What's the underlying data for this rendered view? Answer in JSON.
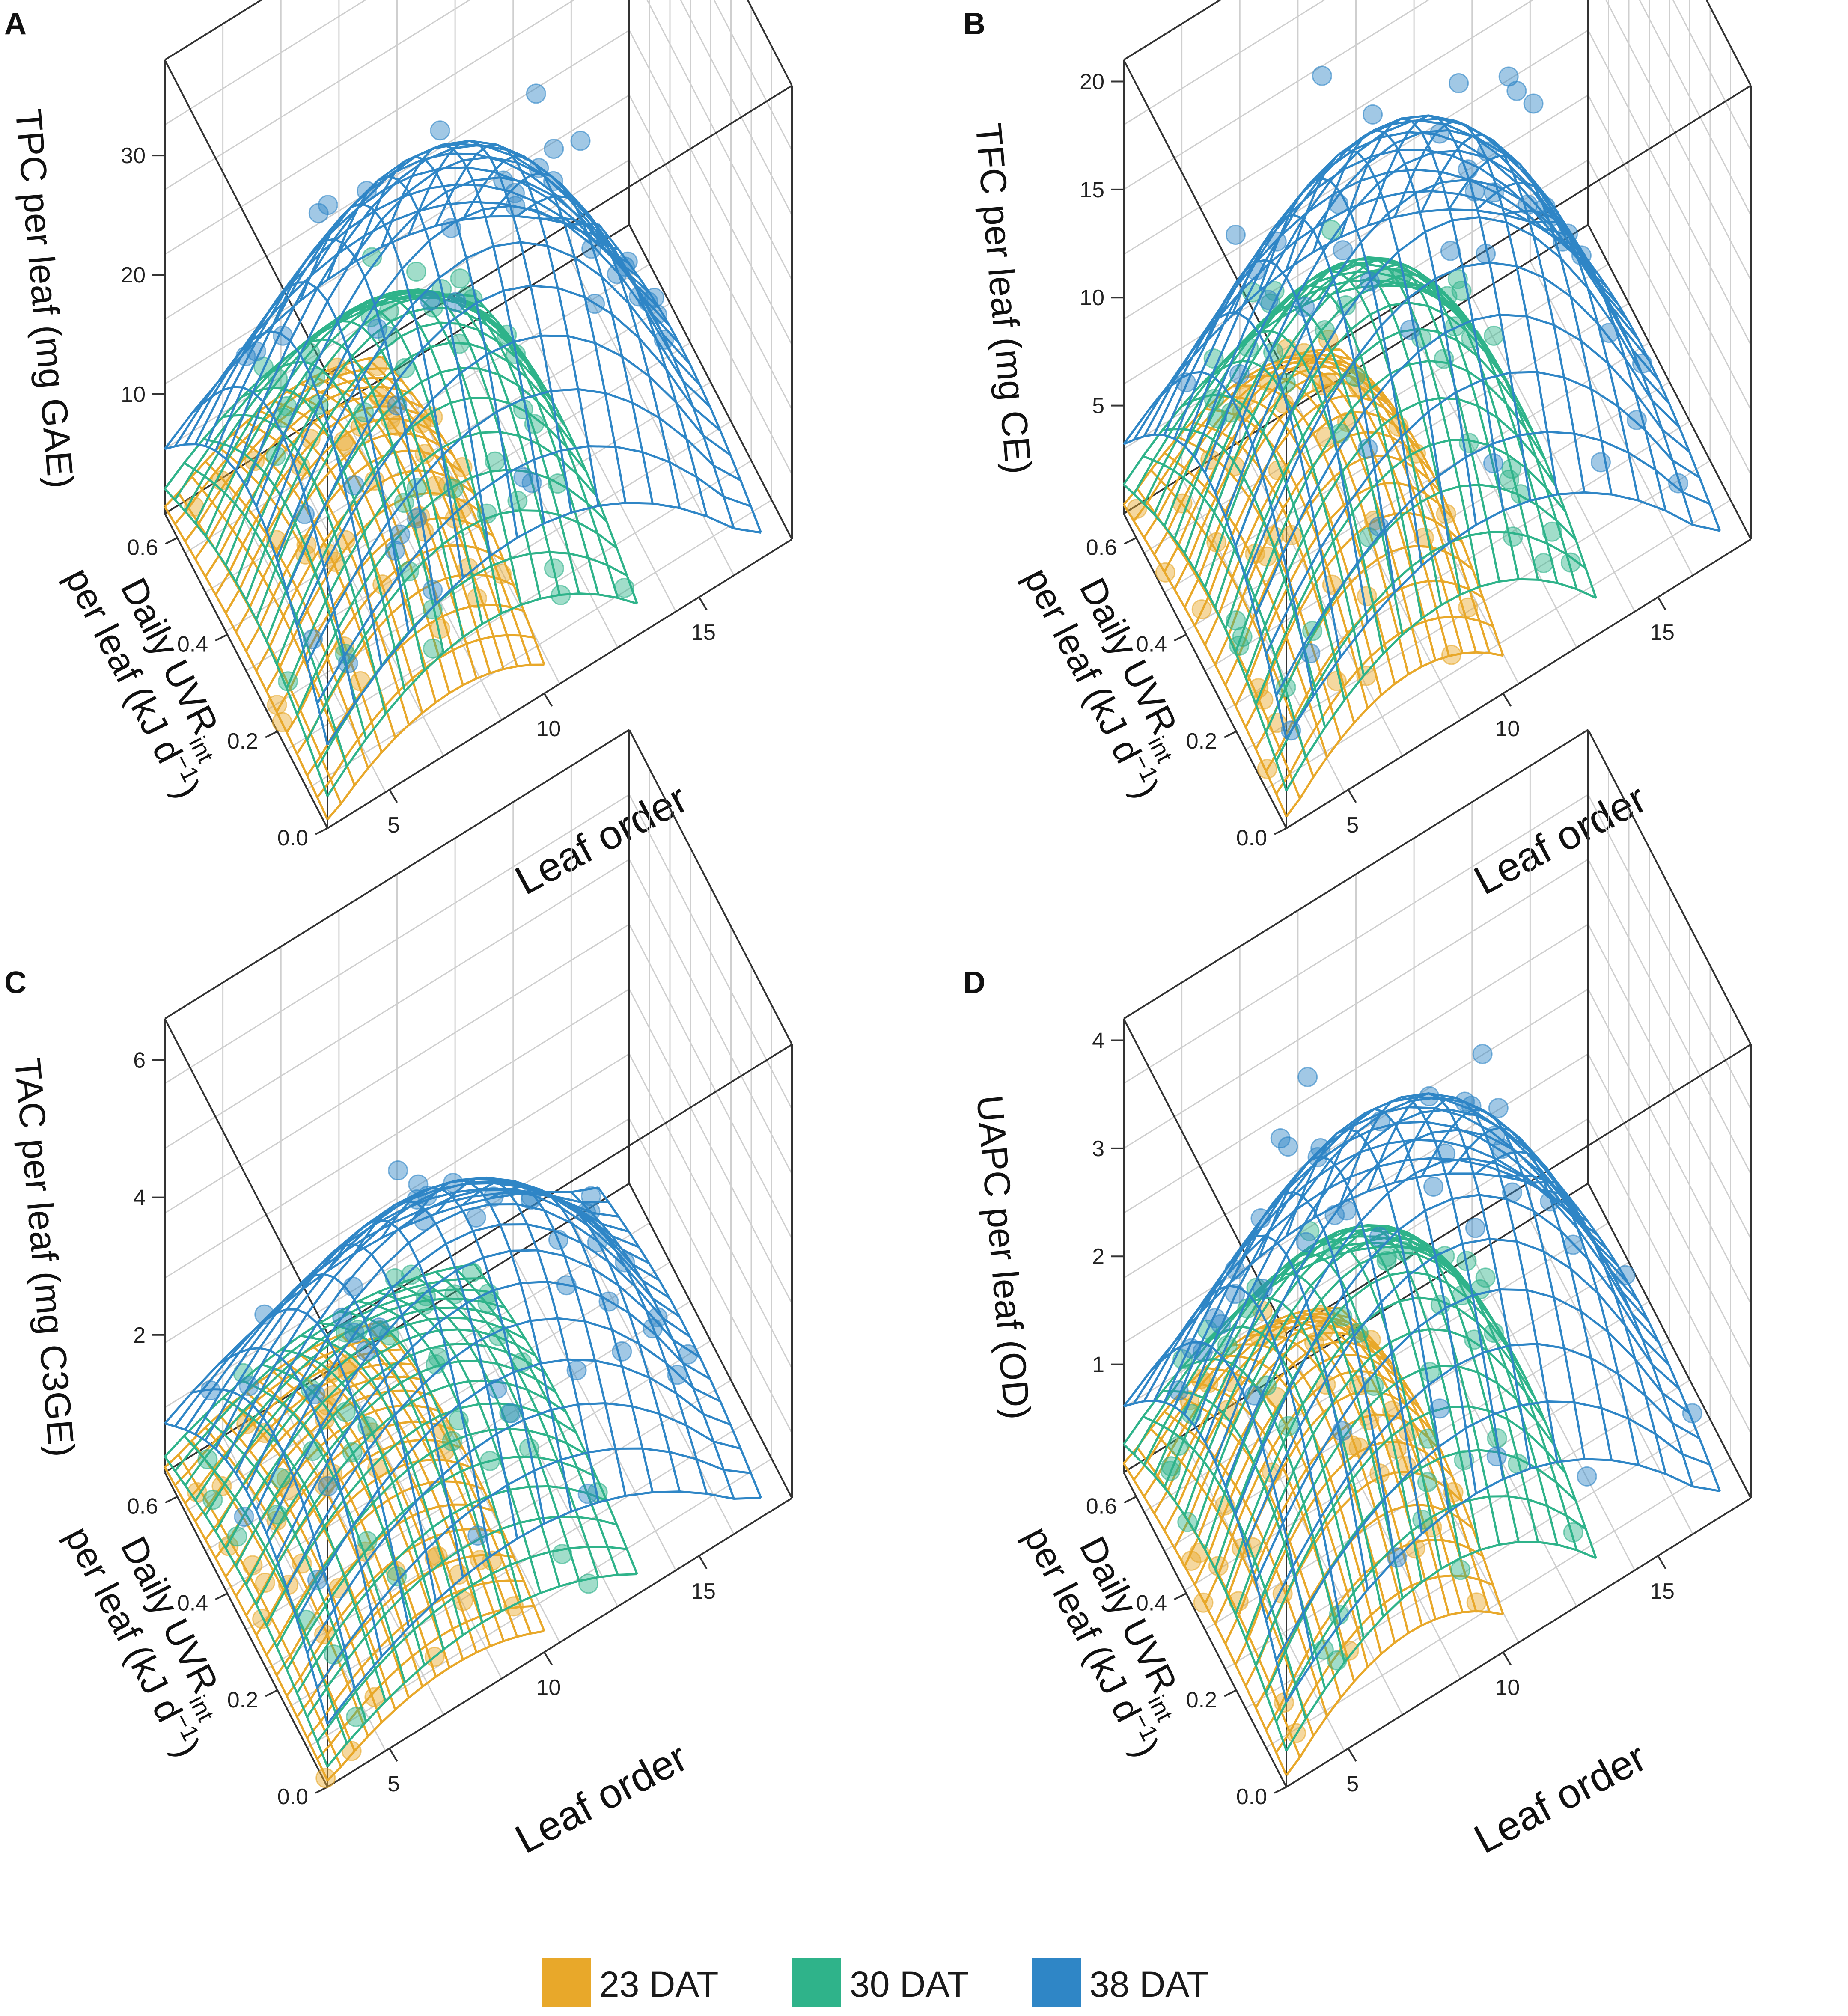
{
  "legend": {
    "items": [
      {
        "label": "23 DAT",
        "color": "#E8A82A"
      },
      {
        "label": "30 DAT",
        "color": "#2FB38A"
      },
      {
        "label": "38 DAT",
        "color": "#2F86C6"
      }
    ]
  },
  "shared_axes": {
    "x_label": "Leaf order",
    "y_label_main": "Daily UVR",
    "y_label_sub": "int",
    "y_label_line2": "per leaf (kJ d",
    "y_label_sup": "−1",
    "y_label_close": ")",
    "x_ticks": [
      "5",
      "10",
      "15"
    ],
    "y_ticks": [
      "0.0",
      "0.2",
      "0.4",
      "0.6"
    ]
  },
  "chart_data": [
    {
      "panel": "A",
      "type": "surface3d",
      "zlabel": "TPC per leaf (mg GAE)",
      "xlabel": "Leaf order",
      "ylabel": "Daily UVRint per leaf (kJ d−1)",
      "xlim": [
        3,
        18
      ],
      "ylim": [
        0,
        0.65
      ],
      "zlim": [
        0,
        38
      ],
      "z_ticks": [
        "10",
        "20",
        "30"
      ],
      "z_tick_values": [
        10,
        20,
        30
      ],
      "series": [
        {
          "name": "23 DAT",
          "peak_z": 11,
          "peak_x": 7,
          "x_range": [
            3,
            10
          ]
        },
        {
          "name": "30 DAT",
          "peak_z": 20,
          "peak_x": 8,
          "x_range": [
            3,
            13
          ]
        },
        {
          "name": "38 DAT",
          "peak_z": 32,
          "peak_x": 9,
          "x_range": [
            3,
            17
          ]
        }
      ]
    },
    {
      "panel": "B",
      "type": "surface3d",
      "zlabel": "TFC per leaf (mg CE)",
      "xlabel": "Leaf order",
      "ylabel": "Daily UVRint per leaf (kJ d−1)",
      "xlim": [
        3,
        18
      ],
      "ylim": [
        0,
        0.65
      ],
      "zlim": [
        0,
        21
      ],
      "z_ticks": [
        "5",
        "10",
        "15",
        "20"
      ],
      "z_tick_values": [
        5,
        10,
        15,
        20
      ],
      "series": [
        {
          "name": "23 DAT",
          "peak_z": 8,
          "peak_x": 7,
          "x_range": [
            3,
            10
          ]
        },
        {
          "name": "30 DAT",
          "peak_z": 13,
          "peak_x": 8,
          "x_range": [
            3,
            13
          ]
        },
        {
          "name": "38 DAT",
          "peak_z": 19,
          "peak_x": 9,
          "x_range": [
            3,
            17
          ]
        }
      ]
    },
    {
      "panel": "C",
      "type": "surface3d",
      "zlabel": "TAC per leaf (mg C3GE)",
      "xlabel": "Leaf order",
      "ylabel": "Daily UVRint per leaf (kJ d−1)",
      "xlim": [
        3,
        18
      ],
      "ylim": [
        0,
        0.65
      ],
      "zlim": [
        0,
        6.6
      ],
      "z_ticks": [
        "2",
        "4",
        "6"
      ],
      "z_tick_values": [
        2,
        4,
        6
      ],
      "series": [
        {
          "name": "23 DAT",
          "peak_z": 1.4,
          "peak_x": 7,
          "x_range": [
            3,
            10
          ]
        },
        {
          "name": "30 DAT",
          "peak_z": 2.2,
          "peak_x": 8,
          "x_range": [
            3,
            13
          ]
        },
        {
          "name": "38 DAT",
          "peak_z": 4.2,
          "peak_x": 9,
          "x_range": [
            3,
            17
          ]
        }
      ]
    },
    {
      "panel": "D",
      "type": "surface3d",
      "zlabel": "UAPC per leaf (OD)",
      "xlabel": "Leaf order",
      "ylabel": "Daily UVRint per leaf (kJ d−1)",
      "xlim": [
        3,
        18
      ],
      "ylim": [
        0,
        0.65
      ],
      "zlim": [
        0,
        4.2
      ],
      "z_ticks": [
        "1",
        "2",
        "3",
        "4"
      ],
      "z_tick_values": [
        1,
        2,
        3,
        4
      ],
      "series": [
        {
          "name": "23 DAT",
          "peak_z": 1.6,
          "peak_x": 7,
          "x_range": [
            3,
            10
          ]
        },
        {
          "name": "30 DAT",
          "peak_z": 2.5,
          "peak_x": 8,
          "x_range": [
            3,
            13
          ]
        },
        {
          "name": "38 DAT",
          "peak_z": 3.6,
          "peak_x": 9,
          "x_range": [
            3,
            17
          ]
        }
      ]
    }
  ]
}
